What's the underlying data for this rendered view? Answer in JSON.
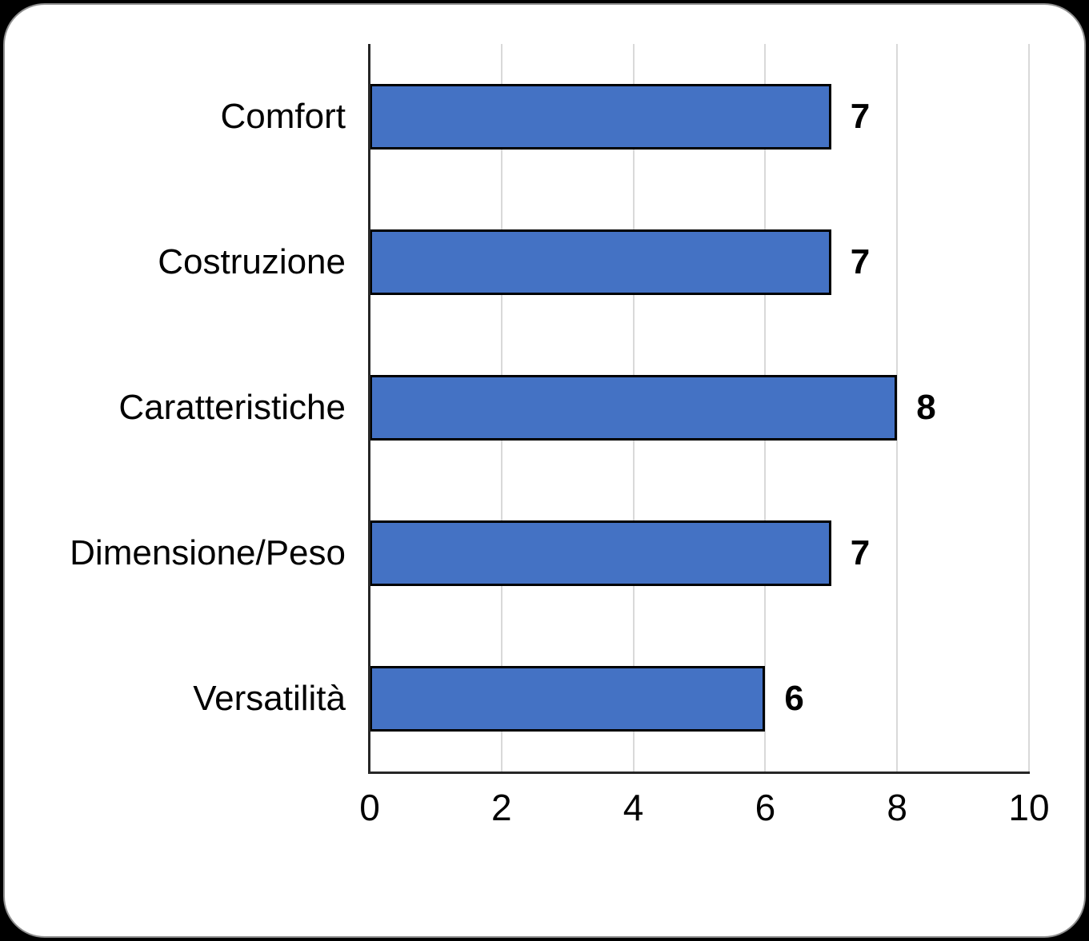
{
  "canvas": {
    "background": "#000000",
    "card_background": "#ffffff",
    "card_border": "#8f8f8f"
  },
  "chart_data": {
    "type": "bar",
    "orientation": "horizontal",
    "title": "",
    "xlabel": "",
    "ylabel": "",
    "categories": [
      "Comfort",
      "Costruzione",
      "Caratteristiche",
      "Dimensione/Peso",
      "Versatilità"
    ],
    "values": [
      7,
      7,
      8,
      7,
      6
    ],
    "data_labels": [
      "7",
      "7",
      "8",
      "7",
      "6"
    ],
    "xticks": [
      "0",
      "2",
      "4",
      "6",
      "8",
      "10"
    ],
    "xtick_values": [
      0,
      2,
      4,
      6,
      8,
      10
    ],
    "xlim": [
      0,
      10
    ],
    "grid": true,
    "legend": false,
    "bar_color": "#4472c4",
    "bar_border_color": "#000000",
    "gridline_color": "#d9d9d9",
    "axis_color": "#262626",
    "label_color": "#000000"
  }
}
